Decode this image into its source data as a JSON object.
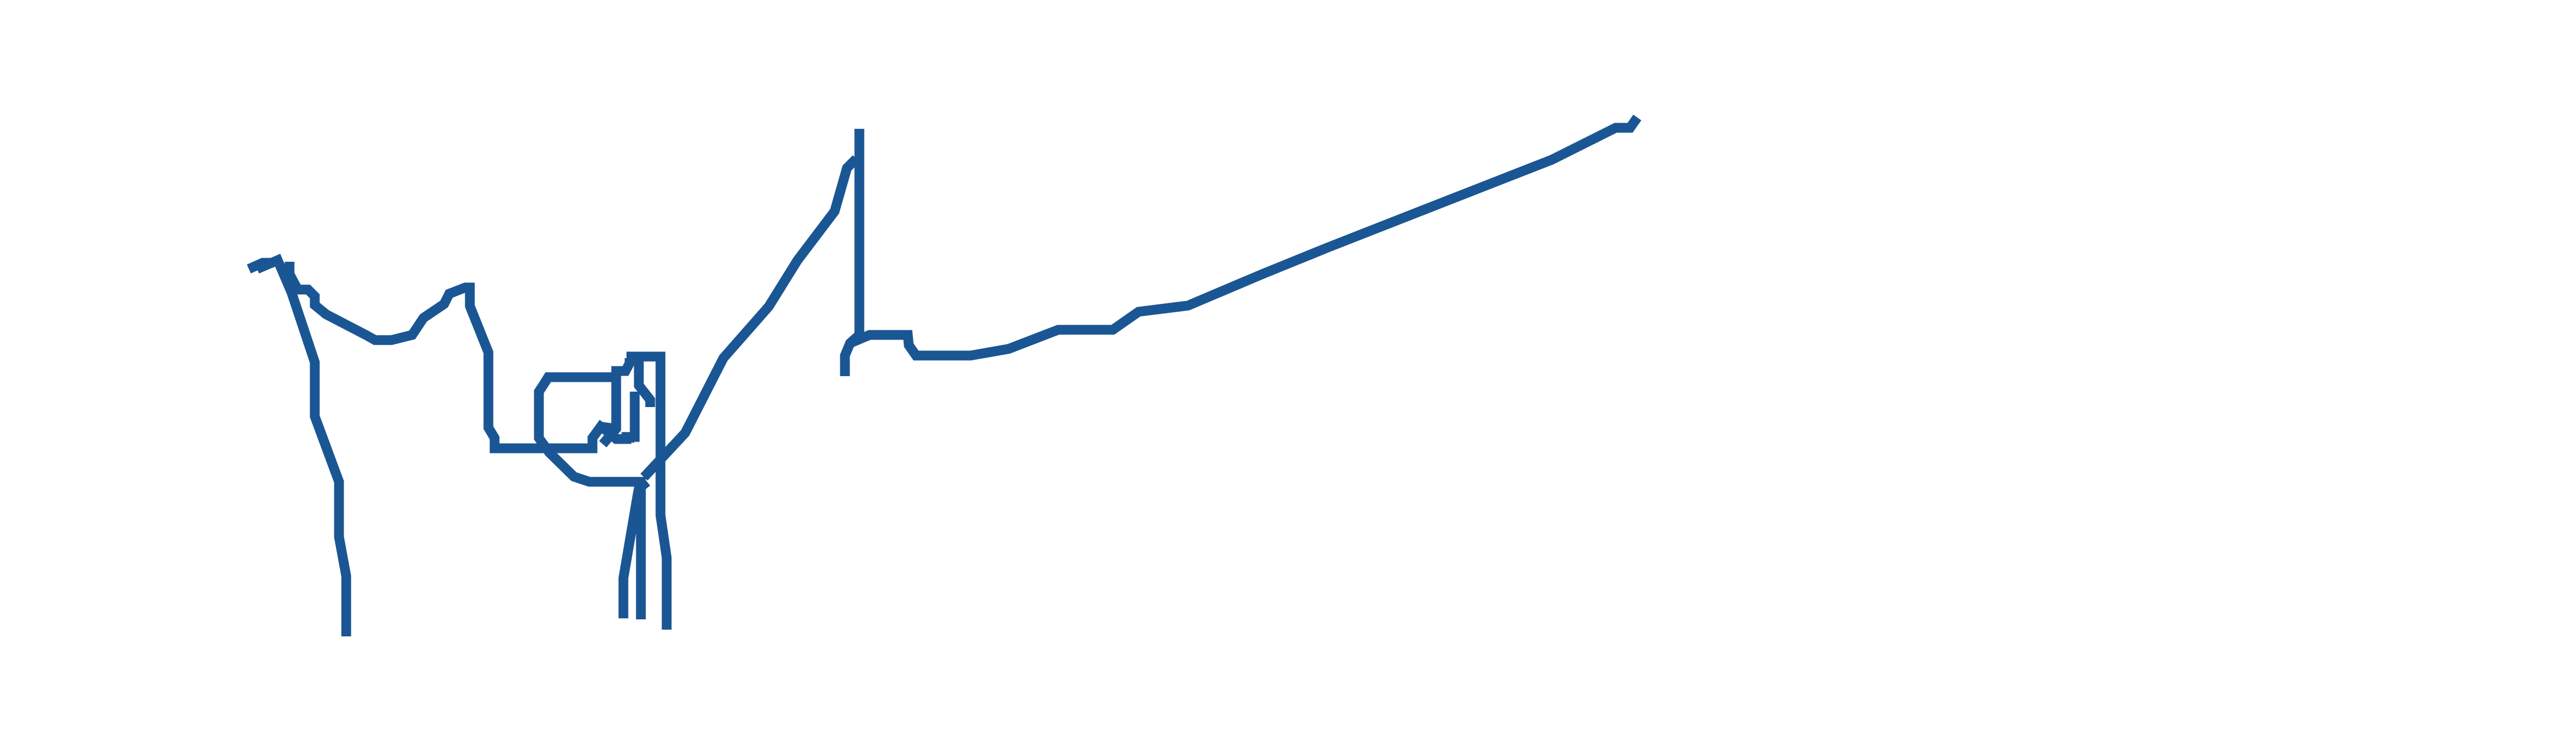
{
  "colors": {
    "background": "#ffffff",
    "stroke": "#1b5694"
  }
}
